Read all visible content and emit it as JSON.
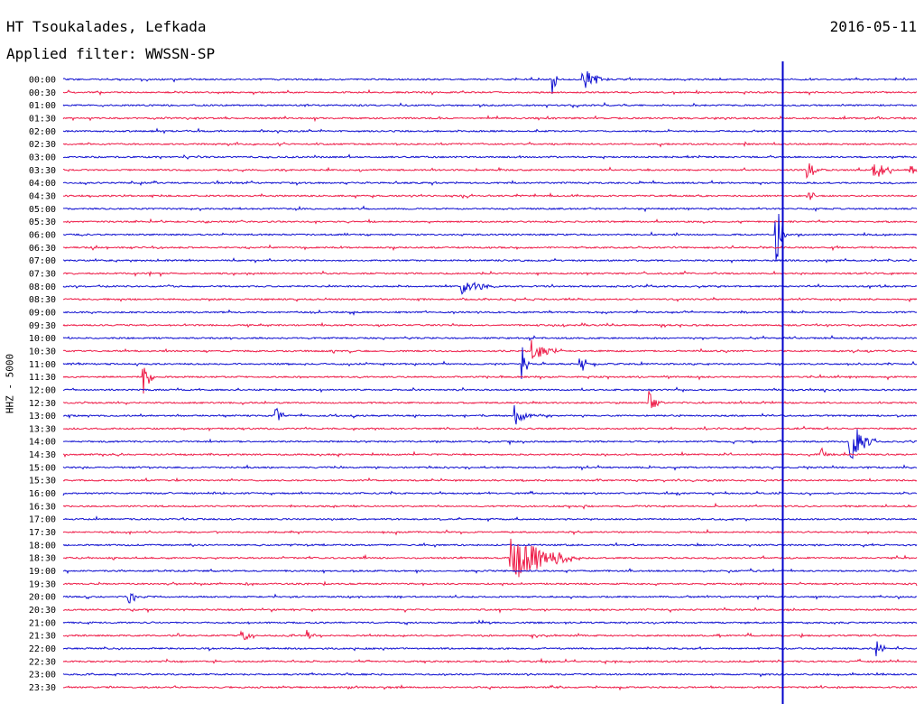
{
  "header": {
    "station": "HT Tsoukalades, Lefkada",
    "date": "2016-05-11",
    "filter_label": "Applied filter: WWSSN-SP",
    "channel_label": "HHZ - 5000"
  },
  "colors": {
    "line_a": "#1010d0",
    "line_b": "#ee1c48",
    "marker": "#0000cc"
  },
  "chart_data": {
    "type": "line",
    "title": "HT Tsoukalades, Lefkada",
    "subtitle": "Applied filter: WWSSN-SP",
    "ylabel": "HHZ - 5000",
    "xlabel": "",
    "row_labels": [
      "00:00",
      "00:30",
      "01:00",
      "01:30",
      "02:00",
      "02:30",
      "03:00",
      "03:30",
      "04:00",
      "04:30",
      "05:00",
      "05:30",
      "06:00",
      "06:30",
      "07:00",
      "07:30",
      "08:00",
      "08:30",
      "09:00",
      "09:30",
      "10:00",
      "10:30",
      "11:00",
      "11:30",
      "12:00",
      "12:30",
      "13:00",
      "13:30",
      "14:00",
      "14:30",
      "15:00",
      "15:30",
      "16:00",
      "16:30",
      "17:00",
      "17:30",
      "18:00",
      "18:30",
      "19:00",
      "19:30",
      "20:00",
      "20:30",
      "21:00",
      "21:30",
      "22:00",
      "22:30",
      "23:00",
      "23:30"
    ],
    "row_colors": [
      "blue",
      "red"
    ],
    "trace_window_fraction": [
      0,
      1
    ],
    "current_time_fraction": 0.843,
    "grid": false,
    "events": [
      {
        "row": 0,
        "pos": 0.574,
        "amp": 16,
        "dur": 0.008
      },
      {
        "row": 0,
        "pos": 0.609,
        "amp": 14,
        "dur": 0.03
      },
      {
        "row": 7,
        "pos": 0.873,
        "amp": 12,
        "dur": 0.012
      },
      {
        "row": 7,
        "pos": 0.95,
        "amp": 14,
        "dur": 0.02
      },
      {
        "row": 7,
        "pos": 0.993,
        "amp": 10,
        "dur": 0.01
      },
      {
        "row": 9,
        "pos": 0.875,
        "amp": 7,
        "dur": 0.008
      },
      {
        "row": 12,
        "pos": 0.835,
        "amp": 38,
        "dur": 0.012
      },
      {
        "row": 16,
        "pos": 0.468,
        "amp": 8,
        "dur": 0.04
      },
      {
        "row": 21,
        "pos": 0.55,
        "amp": 12,
        "dur": 0.035
      },
      {
        "row": 22,
        "pos": 0.538,
        "amp": 20,
        "dur": 0.008
      },
      {
        "row": 22,
        "pos": 0.606,
        "amp": 18,
        "dur": 0.008
      },
      {
        "row": 23,
        "pos": 0.094,
        "amp": 22,
        "dur": 0.012
      },
      {
        "row": 25,
        "pos": 0.688,
        "amp": 16,
        "dur": 0.01
      },
      {
        "row": 26,
        "pos": 0.25,
        "amp": 10,
        "dur": 0.01
      },
      {
        "row": 26,
        "pos": 0.53,
        "amp": 12,
        "dur": 0.02
      },
      {
        "row": 28,
        "pos": 0.922,
        "amp": 24,
        "dur": 0.03
      },
      {
        "row": 29,
        "pos": 0.888,
        "amp": 9,
        "dur": 0.01
      },
      {
        "row": 37,
        "pos": 0.525,
        "amp": 28,
        "dur": 0.08
      },
      {
        "row": 40,
        "pos": 0.078,
        "amp": 12,
        "dur": 0.01
      },
      {
        "row": 43,
        "pos": 0.21,
        "amp": 8,
        "dur": 0.015
      },
      {
        "row": 43,
        "pos": 0.287,
        "amp": 8,
        "dur": 0.008
      },
      {
        "row": 44,
        "pos": 0.954,
        "amp": 10,
        "dur": 0.01
      }
    ]
  }
}
